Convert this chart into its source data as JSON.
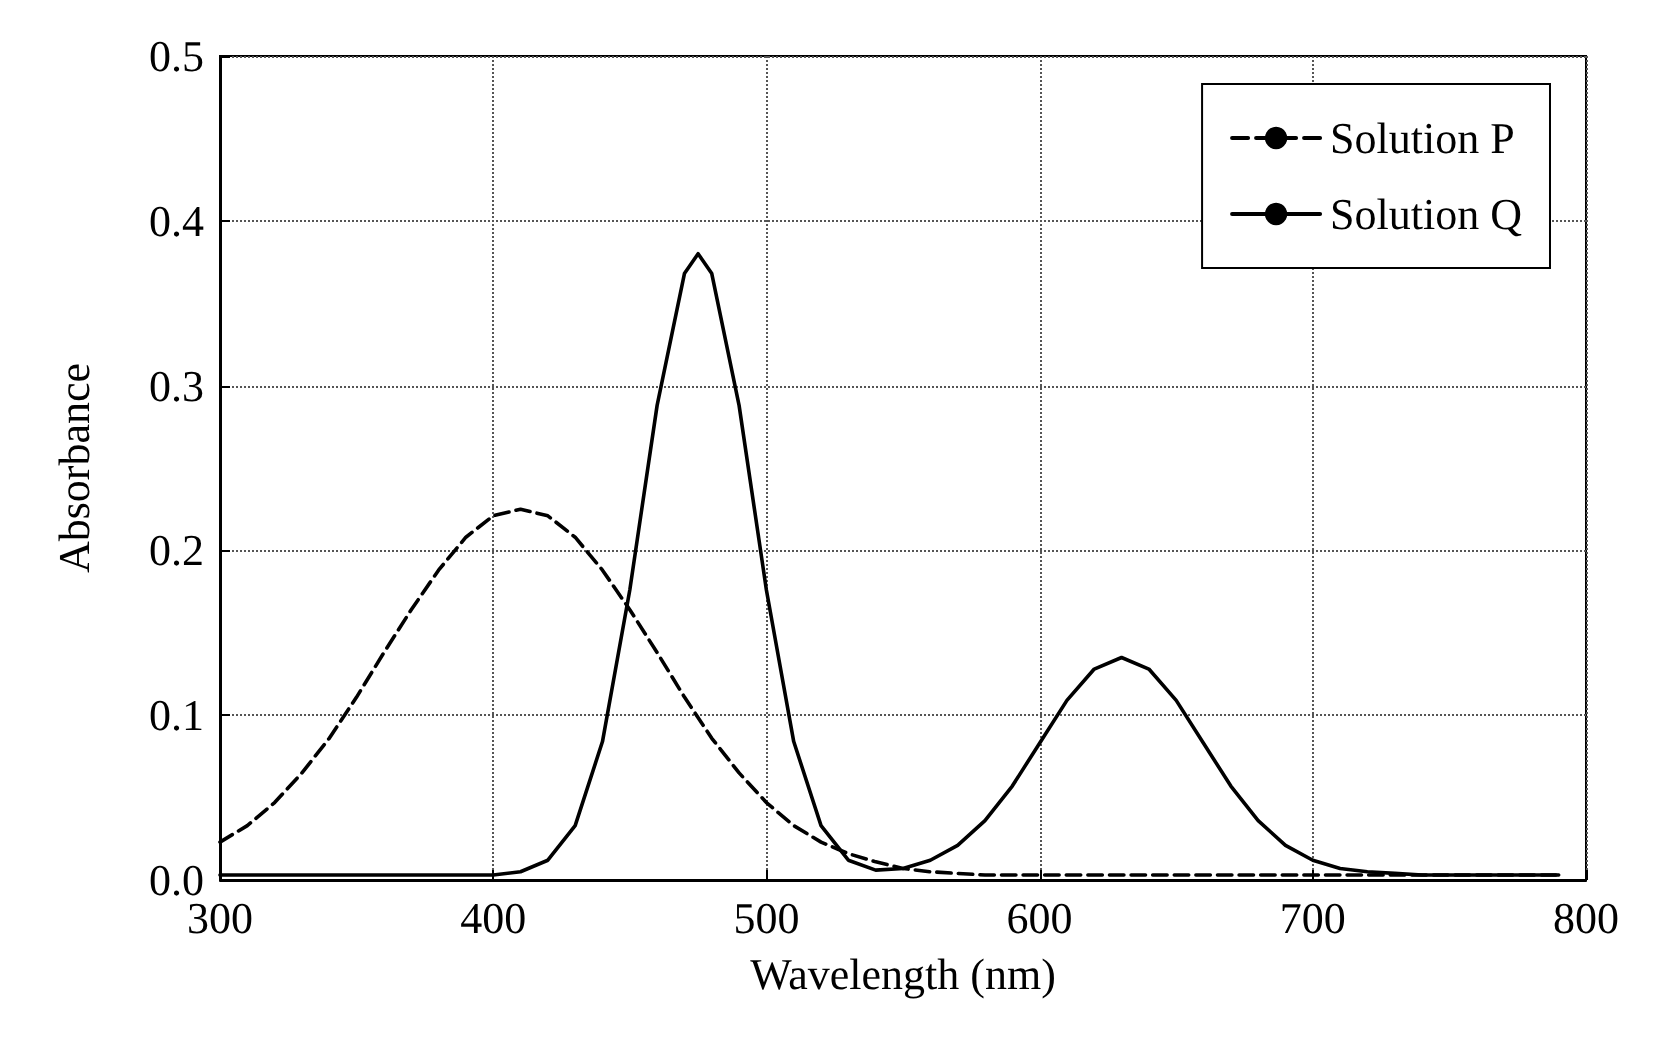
{
  "chart_data": {
    "type": "line",
    "xlabel": "Wavelength (nm)",
    "ylabel": "Absorbance",
    "xlim": [
      300,
      800
    ],
    "xticks": [
      300,
      400,
      500,
      600,
      700,
      800
    ],
    "ylim": [
      0,
      0.5
    ],
    "yticks": [
      {
        "value": 0,
        "label": "0.0"
      },
      0.1,
      0.2,
      0.3,
      0.4,
      0.5
    ],
    "grid": true,
    "legend": "top right",
    "marker": "none",
    "series": [
      {
        "name": "Solution P",
        "color": "#000000",
        "line_style": "dashed",
        "x": [
          300,
          310,
          320,
          330,
          340,
          350,
          360,
          370,
          380,
          390,
          400,
          410,
          420,
          430,
          440,
          450,
          460,
          470,
          480,
          490,
          500,
          510,
          520,
          530,
          540,
          550,
          560,
          570,
          580,
          600,
          650,
          700,
          750,
          790
        ],
        "values": [
          0.023,
          0.033,
          0.047,
          0.065,
          0.086,
          0.111,
          0.138,
          0.164,
          0.188,
          0.208,
          0.221,
          0.225,
          0.221,
          0.208,
          0.188,
          0.164,
          0.138,
          0.111,
          0.086,
          0.065,
          0.047,
          0.033,
          0.023,
          0.016,
          0.011,
          0.007,
          0.005,
          0.004,
          0.003,
          0.003,
          0.003,
          0.003,
          0.003,
          0.003
        ]
      },
      {
        "name": "Solution Q",
        "color": "#000000",
        "line_style": "solid",
        "x": [
          300,
          350,
          400,
          410,
          420,
          430,
          440,
          450,
          460,
          470,
          475,
          480,
          490,
          500,
          510,
          520,
          530,
          540,
          550,
          560,
          570,
          580,
          590,
          600,
          610,
          620,
          630,
          640,
          650,
          660,
          670,
          680,
          690,
          700,
          710,
          720,
          730,
          740,
          790
        ],
        "values": [
          0.003,
          0.003,
          0.003,
          0.005,
          0.012,
          0.033,
          0.084,
          0.176,
          0.288,
          0.368,
          0.38,
          0.368,
          0.288,
          0.176,
          0.084,
          0.033,
          0.012,
          0.006,
          0.007,
          0.012,
          0.021,
          0.036,
          0.057,
          0.083,
          0.109,
          0.128,
          0.135,
          0.128,
          0.109,
          0.083,
          0.057,
          0.036,
          0.021,
          0.012,
          0.007,
          0.005,
          0.004,
          0.003,
          0.003
        ]
      }
    ]
  }
}
